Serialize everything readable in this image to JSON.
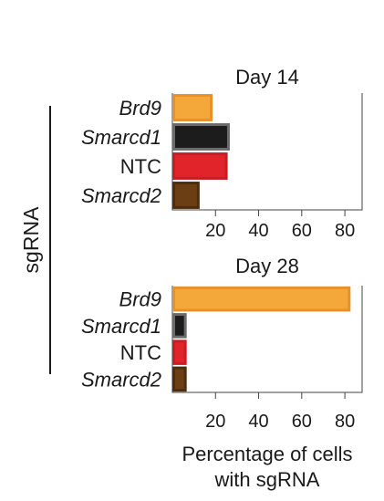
{
  "chart_data": [
    {
      "type": "bar",
      "orientation": "horizontal",
      "title": "Day 14",
      "categories": [
        "Brd9",
        "Smarcd1",
        "NTC",
        "Smarcd2"
      ],
      "values": [
        18,
        26,
        25,
        12
      ],
      "colors": [
        "#F5A83A",
        "#1C1C1C",
        "#E0242A",
        "#6B3E14"
      ],
      "edge_colors": [
        "#E8902A",
        "#6B6B6B",
        "#C61E23",
        "#4F2C0C"
      ],
      "xlim": [
        0,
        88
      ],
      "xticks": [
        20,
        40,
        60,
        80
      ],
      "grid": false
    },
    {
      "type": "bar",
      "orientation": "horizontal",
      "title": "Day 28",
      "categories": [
        "Brd9",
        "Smarcd1",
        "NTC",
        "Smarcd2"
      ],
      "values": [
        82,
        6,
        6,
        6
      ],
      "colors": [
        "#F5A83A",
        "#1C1C1C",
        "#E0242A",
        "#6B3E14"
      ],
      "edge_colors": [
        "#E8902A",
        "#6B6B6B",
        "#C61E23",
        "#4F2C0C"
      ],
      "xlim": [
        0,
        88
      ],
      "xticks": [
        20,
        40,
        60,
        80
      ],
      "grid": false
    }
  ],
  "shared": {
    "ylabel": "sgRNA",
    "xlabel_line1": "Percentage of cells",
    "xlabel_line2": "with sgRNA"
  }
}
